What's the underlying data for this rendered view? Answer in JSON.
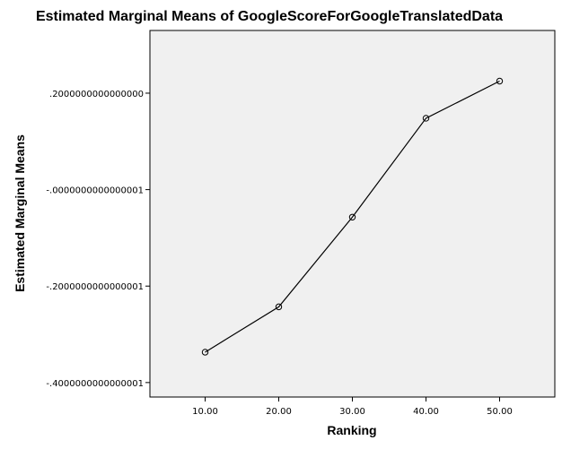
{
  "chart_data": {
    "type": "line",
    "title": "Estimated Marginal Means of GoogleScoreForGoogleTranslatedData",
    "xlabel": "Ranking",
    "ylabel": "Estimated Marginal Means",
    "x_tick_labels": [
      "10.00",
      "20.00",
      "30.00",
      "40.00",
      "50.00"
    ],
    "y_tick_labels": [
      ".2000000000000000",
      "-.0000000000000001",
      "-.2000000000000001",
      "-.4000000000000001"
    ],
    "y_tick_values": [
      0.2,
      0.0,
      -0.2,
      -0.4
    ],
    "x": [
      10,
      20,
      30,
      40,
      50
    ],
    "values": [
      -0.337,
      -0.243,
      -0.057,
      0.148,
      0.225
    ],
    "xlim": [
      2.5,
      57.5
    ],
    "ylim": [
      -0.43,
      0.33
    ],
    "grid": false,
    "marker": "open-circle",
    "colors": {
      "plot_background": "#f0f0f0",
      "line": "#000000",
      "page_background": "#ffffff"
    }
  }
}
